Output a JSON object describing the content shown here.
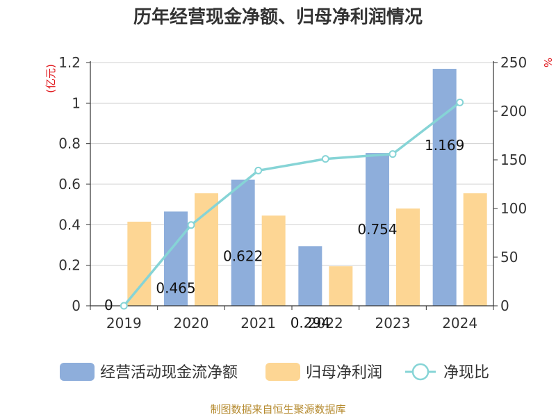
{
  "title": "历年经营现金净额、归母净利润情况",
  "source": "制图数据来自恒生聚源数据库",
  "chart_data": {
    "type": "bar",
    "categories": [
      "2019",
      "2020",
      "2021",
      "2022",
      "2023",
      "2024"
    ],
    "series": [
      {
        "name": "经营活动现金流净额",
        "type": "bar",
        "axis": "left",
        "color": "#8eaedb",
        "values": [
          0,
          0.465,
          0.622,
          0.294,
          0.754,
          1.169
        ],
        "labels": [
          "0",
          "0.465",
          "0.622",
          "0.294",
          "0.754",
          "1.169"
        ]
      },
      {
        "name": "归母净利润",
        "type": "bar",
        "axis": "left",
        "color": "#fdd694",
        "values": [
          0.415,
          0.555,
          0.445,
          0.195,
          0.48,
          0.555
        ]
      },
      {
        "name": "净现比",
        "type": "line",
        "axis": "right",
        "color": "#86d4d6",
        "values": [
          0,
          83,
          139,
          151,
          156,
          209
        ]
      }
    ],
    "ylabel": "(亿元)",
    "ylabel_right": "%",
    "ylim": [
      0,
      1.2
    ],
    "ylim_right": [
      0,
      250
    ],
    "yticks": [
      "0",
      "0.2",
      "0.4",
      "0.6",
      "0.8",
      "1",
      "1.2"
    ],
    "yticks_right": [
      "0",
      "50",
      "100",
      "150",
      "200",
      "250"
    ],
    "grid": true,
    "legend": "bottom"
  }
}
